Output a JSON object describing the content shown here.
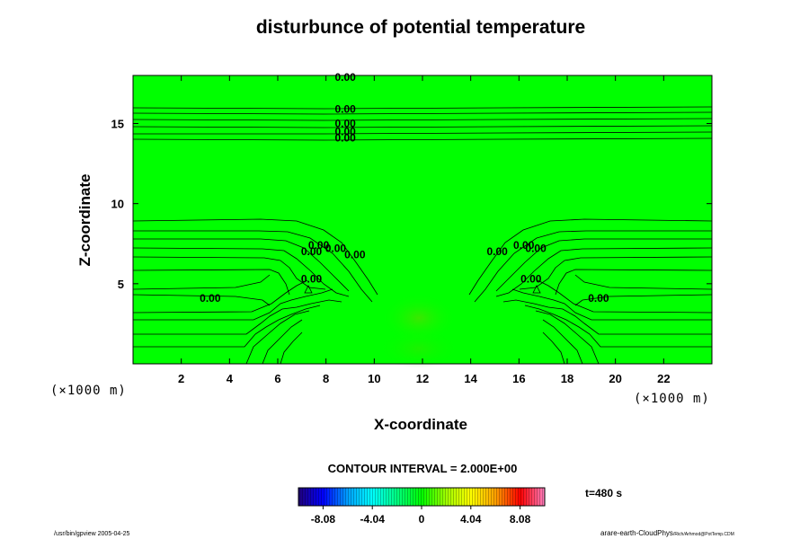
{
  "chart_data": {
    "type": "heatmap",
    "title": "disturbunce of potential temperature",
    "xlabel": "X-coordinate",
    "ylabel": "Z-coordinate",
    "x_unit": "(×1000 m)",
    "y_unit": "(×1000 m)",
    "xlim": [
      0,
      24
    ],
    "ylim": [
      0,
      18
    ],
    "xticks": [
      2,
      4,
      6,
      8,
      10,
      12,
      14,
      16,
      18,
      20,
      22
    ],
    "yticks": [
      5,
      10,
      15
    ],
    "contour_interval_label": "CONTOUR INTERVAL = 2.000E+00",
    "time_label": "t=480 s",
    "colorbar": {
      "range": [
        -10.1,
        10.1
      ],
      "tick_values": [
        -8.08,
        -4.04,
        0,
        4.04,
        8.08
      ],
      "tick_labels": [
        "-8.08",
        "-4.04",
        "0",
        "4.04",
        "8.08"
      ],
      "colors": [
        "#20007a",
        "#0000ff",
        "#00a0ff",
        "#00ffff",
        "#00ff80",
        "#00ff00",
        "#a0ff00",
        "#ffff00",
        "#ffa000",
        "#ff0000",
        "#ff80c0"
      ]
    },
    "field_background_color": "#00ff00",
    "contour_labels": [
      {
        "x": 8.8,
        "z": 17.9,
        "text": "0.00"
      },
      {
        "x": 8.8,
        "z": 15.9,
        "text": "0.00"
      },
      {
        "x": 8.8,
        "z": 15.0,
        "text": "0.00"
      },
      {
        "x": 8.8,
        "z": 14.5,
        "text": "0.00"
      },
      {
        "x": 8.8,
        "z": 14.1,
        "text": "0.00"
      },
      {
        "x": 7.7,
        "z": 7.4,
        "text": "0.00"
      },
      {
        "x": 7.4,
        "z": 7.0,
        "text": "0.00"
      },
      {
        "x": 8.4,
        "z": 7.2,
        "text": "0.00"
      },
      {
        "x": 9.2,
        "z": 6.8,
        "text": "0.00"
      },
      {
        "x": 7.4,
        "z": 5.3,
        "text": "0.00"
      },
      {
        "x": 3.2,
        "z": 4.1,
        "text": "0.00"
      },
      {
        "x": 15.1,
        "z": 7.0,
        "text": "0.00"
      },
      {
        "x": 16.2,
        "z": 7.4,
        "text": "0.00"
      },
      {
        "x": 16.7,
        "z": 7.2,
        "text": "0.00"
      },
      {
        "x": 16.5,
        "z": 5.3,
        "text": "0.00"
      },
      {
        "x": 19.3,
        "z": 4.1,
        "text": "0.00"
      }
    ]
  },
  "footer": {
    "left": "/usr/bin/gpview 2005-04-25",
    "right_main": "arare-earth-CloudPhys",
    "right_small": "/Rich/Arhmod@PotTemp.CDM"
  }
}
